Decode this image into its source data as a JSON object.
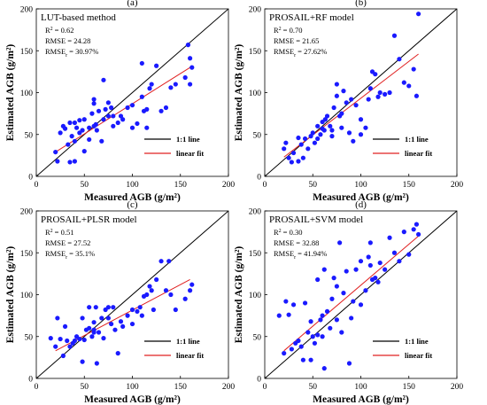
{
  "chart_data": [
    {
      "type": "scatter",
      "panel": "(a)",
      "method": "LUT-based method",
      "stats": [
        "R",
        "RMSE = 24.28",
        "RMSE",
        "= 30.97%"
      ],
      "r2": "= 0.62",
      "xlabel": "Measured AGB (g/m²)",
      "ylabel": "Estimated AGB (g/m²)",
      "xlim": [
        0,
        200
      ],
      "ylim": [
        0,
        200
      ],
      "xticks": [
        "0",
        "50",
        "100",
        "150",
        "200"
      ],
      "yticks": [
        "0",
        "50",
        "100",
        "150",
        "200"
      ],
      "legend": [
        "1:1 line",
        "linear fit"
      ],
      "fit": [
        [
          20,
          29
        ],
        [
          160,
          130
        ]
      ],
      "points": [
        [
          20,
          29
        ],
        [
          22,
          18
        ],
        [
          25,
          52
        ],
        [
          28,
          60
        ],
        [
          30,
          57
        ],
        [
          33,
          38
        ],
        [
          35,
          17
        ],
        [
          35,
          64
        ],
        [
          37,
          48
        ],
        [
          40,
          18
        ],
        [
          40,
          64
        ],
        [
          40,
          42
        ],
        [
          42,
          58
        ],
        [
          45,
          52
        ],
        [
          45,
          67
        ],
        [
          48,
          55
        ],
        [
          50,
          30
        ],
        [
          50,
          68
        ],
        [
          55,
          44
        ],
        [
          55,
          58
        ],
        [
          58,
          75
        ],
        [
          60,
          92
        ],
        [
          60,
          60
        ],
        [
          60,
          87
        ],
        [
          62,
          62
        ],
        [
          63,
          55
        ],
        [
          65,
          78
        ],
        [
          68,
          42
        ],
        [
          70,
          115
        ],
        [
          70,
          68
        ],
        [
          72,
          80
        ],
        [
          75,
          72
        ],
        [
          75,
          88
        ],
        [
          78,
          82
        ],
        [
          80,
          60
        ],
        [
          80,
          72
        ],
        [
          85,
          64
        ],
        [
          88,
          72
        ],
        [
          90,
          68
        ],
        [
          95,
          82
        ],
        [
          100,
          58
        ],
        [
          100,
          85
        ],
        [
          105,
          63
        ],
        [
          110,
          95
        ],
        [
          110,
          135
        ],
        [
          112,
          78
        ],
        [
          115,
          80
        ],
        [
          115,
          58
        ],
        [
          118,
          105
        ],
        [
          120,
          110
        ],
        [
          125,
          132
        ],
        [
          130,
          78
        ],
        [
          135,
          82
        ],
        [
          140,
          106
        ],
        [
          145,
          110
        ],
        [
          155,
          118
        ],
        [
          158,
          157
        ],
        [
          160,
          110
        ],
        [
          160,
          141
        ],
        [
          162,
          130
        ]
      ]
    },
    {
      "type": "scatter",
      "panel": "(b)",
      "method": "PROSAIL+RF model",
      "stats": [
        "R",
        "RMSE = 21.65",
        "RMSE",
        "= 27.62%"
      ],
      "r2": "= 0.70",
      "xlabel": "Measured AGB (g/m²)",
      "ylabel": "Estimated AGB (g/m²)",
      "xlim": [
        0,
        200
      ],
      "ylim": [
        0,
        200
      ],
      "xticks": [
        "0",
        "50",
        "100",
        "150",
        "200"
      ],
      "yticks": [
        "0",
        "50",
        "100",
        "150",
        "200"
      ],
      "legend": [
        "1:1 line",
        "linear fit"
      ],
      "fit": [
        [
          20,
          23
        ],
        [
          160,
          146
        ]
      ],
      "points": [
        [
          20,
          33
        ],
        [
          22,
          40
        ],
        [
          25,
          22
        ],
        [
          28,
          17
        ],
        [
          30,
          28
        ],
        [
          35,
          18
        ],
        [
          35,
          46
        ],
        [
          38,
          38
        ],
        [
          40,
          22
        ],
        [
          42,
          45
        ],
        [
          45,
          33
        ],
        [
          48,
          48
        ],
        [
          50,
          52
        ],
        [
          52,
          40
        ],
        [
          55,
          60
        ],
        [
          55,
          45
        ],
        [
          58,
          50
        ],
        [
          60,
          65
        ],
        [
          60,
          57
        ],
        [
          62,
          55
        ],
        [
          63,
          68
        ],
        [
          65,
          72
        ],
        [
          68,
          60
        ],
        [
          70,
          48
        ],
        [
          70,
          55
        ],
        [
          72,
          82
        ],
        [
          75,
          110
        ],
        [
          75,
          96
        ],
        [
          78,
          72
        ],
        [
          80,
          75
        ],
        [
          80,
          58
        ],
        [
          82,
          102
        ],
        [
          85,
          88
        ],
        [
          88,
          52
        ],
        [
          90,
          92
        ],
        [
          92,
          42
        ],
        [
          95,
          85
        ],
        [
          100,
          68
        ],
        [
          100,
          50
        ],
        [
          105,
          58
        ],
        [
          108,
          92
        ],
        [
          110,
          105
        ],
        [
          112,
          125
        ],
        [
          115,
          122
        ],
        [
          118,
          95
        ],
        [
          120,
          100
        ],
        [
          125,
          98
        ],
        [
          130,
          100
        ],
        [
          135,
          168
        ],
        [
          140,
          140
        ],
        [
          145,
          112
        ],
        [
          150,
          108
        ],
        [
          155,
          128
        ],
        [
          158,
          96
        ],
        [
          160,
          194
        ]
      ]
    },
    {
      "type": "scatter",
      "panel": "(c)",
      "method": "PROSAIL+PLSR model",
      "stats": [
        "R",
        "RMSE = 27.52",
        "RMSE",
        "= 35.1%"
      ],
      "r2": "= 0.51",
      "xlabel": "Measured AGB (g/m²)",
      "ylabel": "Estimated AGB (g/m²)",
      "xlim": [
        0,
        200
      ],
      "ylim": [
        0,
        200
      ],
      "xticks": [
        "0",
        "50",
        "100",
        "150",
        "200"
      ],
      "yticks": [
        "0",
        "50",
        "100",
        "150",
        "200"
      ],
      "legend": [
        "1:1 line",
        "linear fit"
      ],
      "fit": [
        [
          20,
          33
        ],
        [
          160,
          118
        ]
      ],
      "points": [
        [
          15,
          48
        ],
        [
          20,
          38
        ],
        [
          22,
          72
        ],
        [
          25,
          47
        ],
        [
          28,
          27
        ],
        [
          30,
          62
        ],
        [
          32,
          45
        ],
        [
          35,
          38
        ],
        [
          38,
          42
        ],
        [
          40,
          45
        ],
        [
          42,
          50
        ],
        [
          45,
          47
        ],
        [
          48,
          20
        ],
        [
          48,
          72
        ],
        [
          50,
          46
        ],
        [
          52,
          58
        ],
        [
          55,
          60
        ],
        [
          55,
          85
        ],
        [
          58,
          50
        ],
        [
          60,
          58
        ],
        [
          60,
          67
        ],
        [
          60,
          55
        ],
        [
          62,
          85
        ],
        [
          63,
          18
        ],
        [
          65,
          55
        ],
        [
          68,
          72
        ],
        [
          70,
          48
        ],
        [
          72,
          82
        ],
        [
          75,
          85
        ],
        [
          75,
          72
        ],
        [
          78,
          65
        ],
        [
          80,
          85
        ],
        [
          82,
          58
        ],
        [
          85,
          30
        ],
        [
          88,
          68
        ],
        [
          90,
          62
        ],
        [
          95,
          75
        ],
        [
          100,
          82
        ],
        [
          100,
          65
        ],
        [
          105,
          80
        ],
        [
          108,
          85
        ],
        [
          110,
          75
        ],
        [
          112,
          98
        ],
        [
          115,
          100
        ],
        [
          118,
          110
        ],
        [
          120,
          105
        ],
        [
          122,
          82
        ],
        [
          125,
          118
        ],
        [
          130,
          140
        ],
        [
          135,
          105
        ],
        [
          138,
          140
        ],
        [
          140,
          100
        ],
        [
          145,
          82
        ],
        [
          155,
          95
        ],
        [
          160,
          105
        ],
        [
          162,
          112
        ]
      ]
    },
    {
      "type": "scatter",
      "panel": "(d)",
      "method": "PROSAIL+SVM model",
      "stats": [
        "R",
        "RMSE = 32.88",
        "RMSE",
        "= 41.94%"
      ],
      "r2": "= 0.30",
      "xlabel": "Measured AGB (g/m²)",
      "ylabel": "Estimated AGB (g/m²)",
      "xlim": [
        0,
        200
      ],
      "ylim": [
        0,
        200
      ],
      "xticks": [
        "0",
        "50",
        "100",
        "150",
        "200"
      ],
      "yticks": [
        "0",
        "50",
        "100",
        "150",
        "200"
      ],
      "legend": [
        "1:1 line",
        "linear fit"
      ],
      "fit": [
        [
          20,
          33
        ],
        [
          160,
          170
        ]
      ],
      "points": [
        [
          15,
          75
        ],
        [
          20,
          30
        ],
        [
          22,
          92
        ],
        [
          25,
          76
        ],
        [
          28,
          35
        ],
        [
          30,
          88
        ],
        [
          32,
          42
        ],
        [
          35,
          45
        ],
        [
          38,
          38
        ],
        [
          40,
          22
        ],
        [
          42,
          90
        ],
        [
          45,
          55
        ],
        [
          48,
          22
        ],
        [
          48,
          68
        ],
        [
          50,
          50
        ],
        [
          52,
          42
        ],
        [
          55,
          52
        ],
        [
          55,
          118
        ],
        [
          58,
          70
        ],
        [
          60,
          75
        ],
        [
          60,
          50
        ],
        [
          62,
          12
        ],
        [
          62,
          130
        ],
        [
          65,
          80
        ],
        [
          68,
          60
        ],
        [
          70,
          95
        ],
        [
          72,
          120
        ],
        [
          75,
          110
        ],
        [
          75,
          70
        ],
        [
          78,
          162
        ],
        [
          80,
          55
        ],
        [
          82,
          102
        ],
        [
          85,
          128
        ],
        [
          88,
          18
        ],
        [
          90,
          72
        ],
        [
          92,
          92
        ],
        [
          95,
          130
        ],
        [
          100,
          140
        ],
        [
          100,
          88
        ],
        [
          105,
          105
        ],
        [
          108,
          145
        ],
        [
          110,
          162
        ],
        [
          110,
          135
        ],
        [
          112,
          118
        ],
        [
          115,
          120
        ],
        [
          118,
          115
        ],
        [
          120,
          138
        ],
        [
          125,
          130
        ],
        [
          130,
          168
        ],
        [
          135,
          150
        ],
        [
          140,
          140
        ],
        [
          145,
          175
        ],
        [
          150,
          148
        ],
        [
          155,
          178
        ],
        [
          158,
          184
        ],
        [
          160,
          172
        ]
      ]
    }
  ]
}
